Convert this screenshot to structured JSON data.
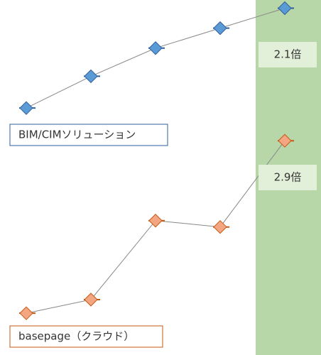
{
  "chart_data": {
    "type": "line",
    "categories": [
      null,
      null,
      null,
      null,
      null
    ],
    "series": [
      {
        "name": "BIM/CIMソリューション",
        "color": "#5b9bd5",
        "edge": "#2e5f9e",
        "values": [
          100,
          135,
          166,
          188,
          210
        ]
      },
      {
        "name": "basepage（クラウド）",
        "color": "#f4a582",
        "edge": "#c55a11",
        "axis": "y2",
        "values": [
          100,
          115,
          202,
          195,
          290
        ]
      }
    ],
    "ylim": [
      -172,
      219
    ],
    "y2lim": [
      54,
      445
    ],
    "annotations": [
      "2.1倍",
      "2.9倍"
    ],
    "highlight_color": "#b7d7a8"
  }
}
